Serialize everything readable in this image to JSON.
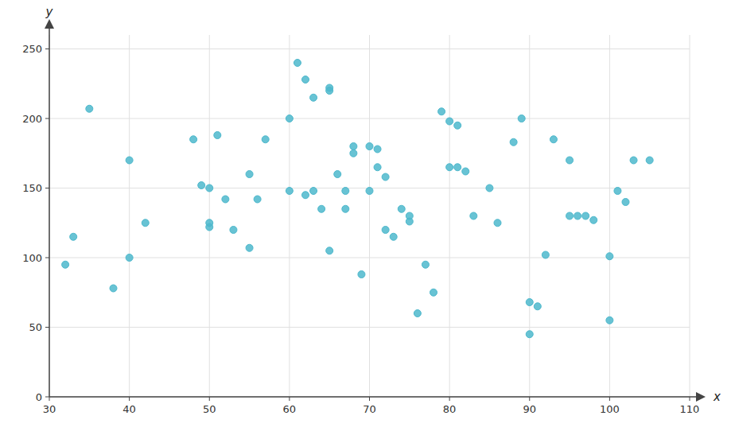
{
  "chart_data": {
    "type": "scatter",
    "x": [
      32,
      33,
      35,
      38,
      40,
      40,
      42,
      48,
      49,
      50,
      50,
      50,
      51,
      52,
      53,
      55,
      55,
      56,
      57,
      60,
      60,
      61,
      62,
      62,
      63,
      63,
      64,
      65,
      65,
      65,
      66,
      67,
      67,
      68,
      68,
      69,
      70,
      70,
      71,
      71,
      72,
      72,
      73,
      74,
      75,
      75,
      76,
      77,
      78,
      79,
      80,
      80,
      81,
      81,
      82,
      83,
      85,
      86,
      88,
      89,
      90,
      90,
      91,
      92,
      93,
      95,
      95,
      96,
      97,
      98,
      100,
      100,
      101,
      102,
      103,
      105
    ],
    "y": [
      95,
      115,
      207,
      78,
      100,
      170,
      125,
      185,
      152,
      150,
      122,
      125,
      188,
      142,
      120,
      107,
      160,
      142,
      185,
      200,
      148,
      240,
      228,
      145,
      215,
      148,
      135,
      222,
      220,
      105,
      160,
      148,
      135,
      180,
      175,
      88,
      148,
      180,
      178,
      165,
      158,
      120,
      115,
      135,
      126,
      130,
      60,
      95,
      75,
      205,
      165,
      198,
      165,
      195,
      162,
      130,
      150,
      125,
      183,
      200,
      45,
      68,
      65,
      102,
      185,
      170,
      130,
      130,
      130,
      127,
      55,
      101,
      148,
      140,
      170,
      170
    ],
    "color": "#4db8cc",
    "xlim": [
      30,
      110
    ],
    "ylim": [
      0,
      260
    ],
    "xticks": [
      30,
      40,
      50,
      60,
      70,
      80,
      90,
      100,
      110
    ],
    "yticks": [
      0,
      50,
      100,
      150,
      200,
      250
    ],
    "xlabel": "x",
    "ylabel": "y",
    "grid": true
  }
}
